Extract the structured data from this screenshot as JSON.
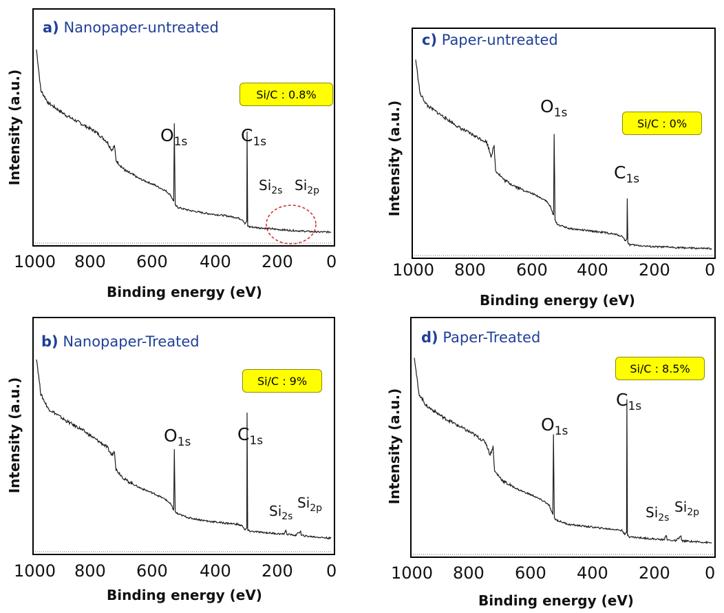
{
  "chart_data": [
    {
      "type": "line",
      "panel_letter": "a)",
      "title": "Nanopaper-untreated",
      "ratio_label": "Si/C : 0.8%",
      "xlabel": "Binding energy (eV)",
      "ylabel": "Intensity (a.u.)",
      "xlim": [
        1000,
        0
      ],
      "x_ticks": [
        "1000",
        "800",
        "600",
        "400",
        "200",
        "0"
      ],
      "peaks": [
        {
          "main": "O",
          "sub": "1s",
          "x": 532
        },
        {
          "main": "C",
          "sub": "1s",
          "x": 285
        },
        {
          "main": "Si",
          "sub": "2s",
          "x": 153
        },
        {
          "main": "Si",
          "sub": "2p",
          "x": 102
        }
      ],
      "annotation": "dashed-circle-around-si-peaks",
      "series": [
        {
          "x": [
            1000,
            985,
            960,
            900,
            850,
            800,
            760,
            745,
            735,
            730,
            700,
            650,
            600,
            560,
            545,
            538,
            534,
            532,
            529,
            520,
            480,
            420,
            360,
            320,
            300,
            292,
            286,
            285,
            283,
            276,
            240,
            200,
            160,
            140,
            100,
            50,
            0
          ],
          "y": [
            0.92,
            0.72,
            0.66,
            0.6,
            0.56,
            0.52,
            0.47,
            0.43,
            0.45,
            0.38,
            0.33,
            0.29,
            0.26,
            0.23,
            0.21,
            0.19,
            0.18,
            0.56,
            0.16,
            0.15,
            0.135,
            0.12,
            0.11,
            0.1,
            0.09,
            0.07,
            0.08,
            0.52,
            0.06,
            0.055,
            0.05,
            0.045,
            0.04,
            0.038,
            0.035,
            0.03,
            0.03
          ]
        }
      ]
    },
    {
      "type": "line",
      "panel_letter": "b)",
      "title": "Nanopaper-Treated",
      "ratio_label": "Si/C : 9%",
      "xlabel": "Binding energy (eV)",
      "ylabel": "Intensity (a.u.)",
      "xlim": [
        1000,
        0
      ],
      "x_ticks": [
        "1000",
        "800",
        "600",
        "400",
        "200",
        "0"
      ],
      "peaks": [
        {
          "main": "O",
          "sub": "1s",
          "x": 532
        },
        {
          "main": "C",
          "sub": "1s",
          "x": 285
        },
        {
          "main": "Si",
          "sub": "2s",
          "x": 153
        },
        {
          "main": "Si",
          "sub": "2p",
          "x": 102
        }
      ],
      "series": [
        {
          "x": [
            1000,
            985,
            960,
            900,
            850,
            800,
            760,
            745,
            735,
            730,
            700,
            650,
            600,
            560,
            545,
            538,
            534,
            532,
            529,
            520,
            480,
            420,
            360,
            320,
            300,
            292,
            286,
            285,
            283,
            276,
            240,
            200,
            160,
            153,
            150,
            120,
            103,
            101,
            80,
            40,
            0
          ],
          "y": [
            0.92,
            0.74,
            0.67,
            0.61,
            0.57,
            0.52,
            0.48,
            0.44,
            0.46,
            0.37,
            0.32,
            0.28,
            0.25,
            0.22,
            0.2,
            0.18,
            0.17,
            0.47,
            0.16,
            0.15,
            0.13,
            0.115,
            0.105,
            0.1,
            0.09,
            0.07,
            0.08,
            0.65,
            0.07,
            0.065,
            0.06,
            0.055,
            0.05,
            0.07,
            0.05,
            0.045,
            0.065,
            0.044,
            0.04,
            0.035,
            0.03
          ]
        }
      ]
    },
    {
      "type": "line",
      "panel_letter": "c)",
      "title": "Paper-untreated",
      "ratio_label": "Si/C : 0%",
      "xlabel": "Binding energy (eV)",
      "ylabel": "Intensity (a.u.)",
      "xlim": [
        1000,
        0
      ],
      "x_ticks": [
        "1000",
        "800",
        "600",
        "400",
        "200",
        "0"
      ],
      "peaks": [
        {
          "main": "O",
          "sub": "1s",
          "x": 532
        },
        {
          "main": "C",
          "sub": "1s",
          "x": 285
        }
      ],
      "series": [
        {
          "x": [
            1000,
            985,
            960,
            900,
            850,
            800,
            760,
            745,
            735,
            730,
            700,
            650,
            600,
            560,
            545,
            538,
            534,
            532,
            529,
            520,
            480,
            420,
            360,
            320,
            300,
            292,
            286,
            285,
            283,
            276,
            240,
            200,
            150,
            100,
            50,
            0
          ],
          "y": [
            0.95,
            0.78,
            0.72,
            0.66,
            0.61,
            0.57,
            0.54,
            0.47,
            0.52,
            0.4,
            0.35,
            0.31,
            0.28,
            0.25,
            0.22,
            0.19,
            0.18,
            0.58,
            0.15,
            0.13,
            0.11,
            0.1,
            0.09,
            0.08,
            0.07,
            0.05,
            0.06,
            0.26,
            0.04,
            0.03,
            0.025,
            0.02,
            0.018,
            0.015,
            0.012,
            0.01
          ]
        }
      ]
    },
    {
      "type": "line",
      "panel_letter": "d)",
      "title": "Paper-Treated",
      "ratio_label": "Si/C : 8.5%",
      "xlabel": "Binding energy (eV)",
      "ylabel": "Intensity (a.u.)",
      "xlim": [
        1000,
        0
      ],
      "x_ticks": [
        "1000",
        "800",
        "600",
        "400",
        "200",
        "0"
      ],
      "peaks": [
        {
          "main": "O",
          "sub": "1s",
          "x": 532
        },
        {
          "main": "C",
          "sub": "1s",
          "x": 285
        },
        {
          "main": "Si",
          "sub": "2s",
          "x": 153
        },
        {
          "main": "Si",
          "sub": "2p",
          "x": 102
        }
      ],
      "series": [
        {
          "x": [
            1000,
            985,
            960,
            900,
            850,
            800,
            760,
            745,
            735,
            730,
            700,
            650,
            600,
            560,
            545,
            538,
            534,
            532,
            529,
            520,
            480,
            420,
            360,
            320,
            300,
            292,
            286,
            285,
            283,
            276,
            240,
            200,
            160,
            153,
            150,
            120,
            103,
            101,
            80,
            40,
            0
          ],
          "y": [
            0.93,
            0.75,
            0.69,
            0.63,
            0.59,
            0.55,
            0.51,
            0.45,
            0.49,
            0.37,
            0.32,
            0.28,
            0.25,
            0.22,
            0.2,
            0.17,
            0.16,
            0.55,
            0.14,
            0.13,
            0.11,
            0.1,
            0.09,
            0.085,
            0.08,
            0.06,
            0.07,
            0.72,
            0.06,
            0.05,
            0.045,
            0.04,
            0.035,
            0.06,
            0.035,
            0.03,
            0.055,
            0.03,
            0.028,
            0.025,
            0.02
          ]
        }
      ]
    }
  ]
}
